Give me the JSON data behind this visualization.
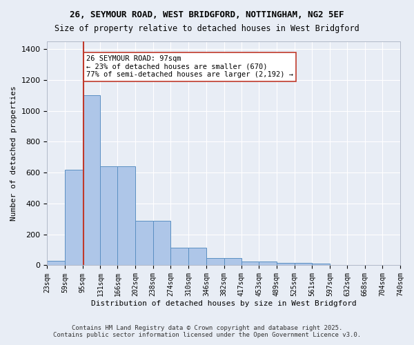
{
  "title_line1": "26, SEYMOUR ROAD, WEST BRIDGFORD, NOTTINGHAM, NG2 5EF",
  "title_line2": "Size of property relative to detached houses in West Bridgford",
  "xlabel": "Distribution of detached houses by size in West Bridgford",
  "ylabel": "Number of detached properties",
  "bar_values": [
    30,
    620,
    1100,
    640,
    640,
    290,
    290,
    115,
    115,
    48,
    48,
    25,
    25,
    15,
    15,
    10,
    0,
    0,
    0,
    0
  ],
  "bin_edges": [
    23,
    59,
    95,
    131,
    166,
    202,
    238,
    274,
    310,
    346,
    382,
    417,
    453,
    489,
    525,
    561,
    597,
    632,
    668,
    704,
    740
  ],
  "bar_color": "#aec6e8",
  "bar_edge_color": "#5a8fc2",
  "bg_color": "#e8edf5",
  "grid_color": "#ffffff",
  "vline_x": 97,
  "vline_color": "#c0392b",
  "annotation_text": "26 SEYMOUR ROAD: 97sqm\n← 23% of detached houses are smaller (670)\n77% of semi-detached houses are larger (2,192) →",
  "annotation_box_color": "#ffffff",
  "annotation_box_edge": "#c0392b",
  "footer_line1": "Contains HM Land Registry data © Crown copyright and database right 2025.",
  "footer_line2": "Contains public sector information licensed under the Open Government Licence v3.0.",
  "tick_labels": [
    "23sqm",
    "59sqm",
    "95sqm",
    "131sqm",
    "166sqm",
    "202sqm",
    "238sqm",
    "274sqm",
    "310sqm",
    "346sqm",
    "382sqm",
    "417sqm",
    "453sqm",
    "489sqm",
    "525sqm",
    "561sqm",
    "597sqm",
    "632sqm",
    "668sqm",
    "704sqm",
    "740sqm"
  ],
  "ylim": [
    0,
    1450
  ],
  "yticks": [
    0,
    200,
    400,
    600,
    800,
    1000,
    1200,
    1400
  ]
}
